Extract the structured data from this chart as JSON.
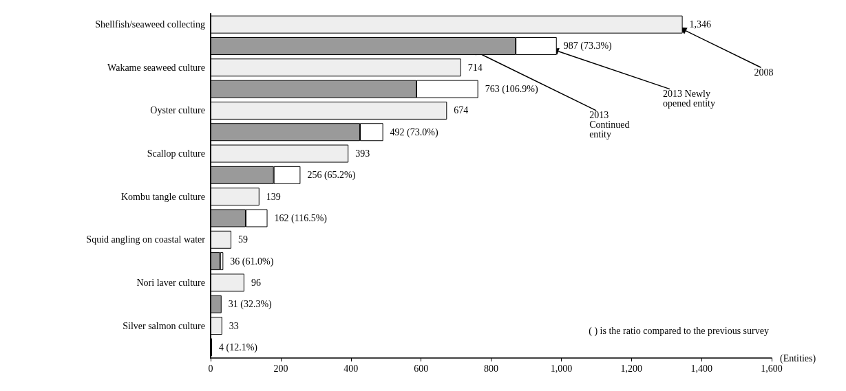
{
  "chart_data": {
    "type": "bar",
    "orientation": "horizontal",
    "stacked": true,
    "legend": false,
    "grid": false,
    "categories": [
      "Shellfish/seaweed collecting",
      null,
      "Wakame seaweed culture",
      null,
      "Oyster culture",
      null,
      "Scallop culture",
      null,
      "Kombu tangle culture",
      null,
      "Squid angling on coastal water",
      null,
      "Nori laver culture",
      null,
      "Silver salmon culture",
      null
    ],
    "series": [
      {
        "name": "2008",
        "color": "#eeeeee",
        "values": [
          1346,
          null,
          714,
          null,
          674,
          null,
          393,
          null,
          139,
          null,
          59,
          null,
          96,
          null,
          33,
          null
        ],
        "value_labels": [
          "1,346",
          null,
          "714",
          null,
          "674",
          null,
          "393",
          null,
          "139",
          null,
          "59",
          null,
          "96",
          null,
          "33",
          null
        ]
      },
      {
        "name": "2013 Continued entity",
        "color": "#9a9a9a",
        "values": [
          null,
          870,
          null,
          587,
          null,
          426,
          null,
          180,
          null,
          100,
          null,
          27,
          null,
          31,
          null,
          4
        ]
      },
      {
        "name": "2013 Newly opened entity",
        "color": "#ffffff",
        "values": [
          null,
          117,
          null,
          176,
          null,
          66,
          null,
          76,
          null,
          62,
          null,
          9,
          null,
          null,
          null,
          null
        ]
      }
    ],
    "totals": [
      null,
      "987 (73.3%)",
      null,
      "763 (106.9%)",
      null,
      "492 (73.0%)",
      null,
      "256 (65.2%)",
      null,
      "162 (116.5%)",
      null,
      "36 (61.0%)",
      null,
      "31 (32.3%)",
      null,
      "4 (12.1%)"
    ],
    "xlim": [
      0,
      1600
    ],
    "xticks": [
      0,
      {
        "value": 200,
        "label": "200"
      },
      {
        "value": 400,
        "label": "400"
      },
      {
        "value": 600,
        "label": "600"
      },
      {
        "value": 800,
        "label": "800"
      },
      {
        "value": 1000,
        "label": "1,000"
      },
      {
        "value": 1200,
        "label": "1,200"
      },
      {
        "value": 1400,
        "label": "1,400"
      },
      {
        "value": 1600,
        "label": "1,600"
      }
    ],
    "xlabel": "(Entities)",
    "annotations": [
      "( ) is the ratio compared to the previous survey"
    ]
  }
}
